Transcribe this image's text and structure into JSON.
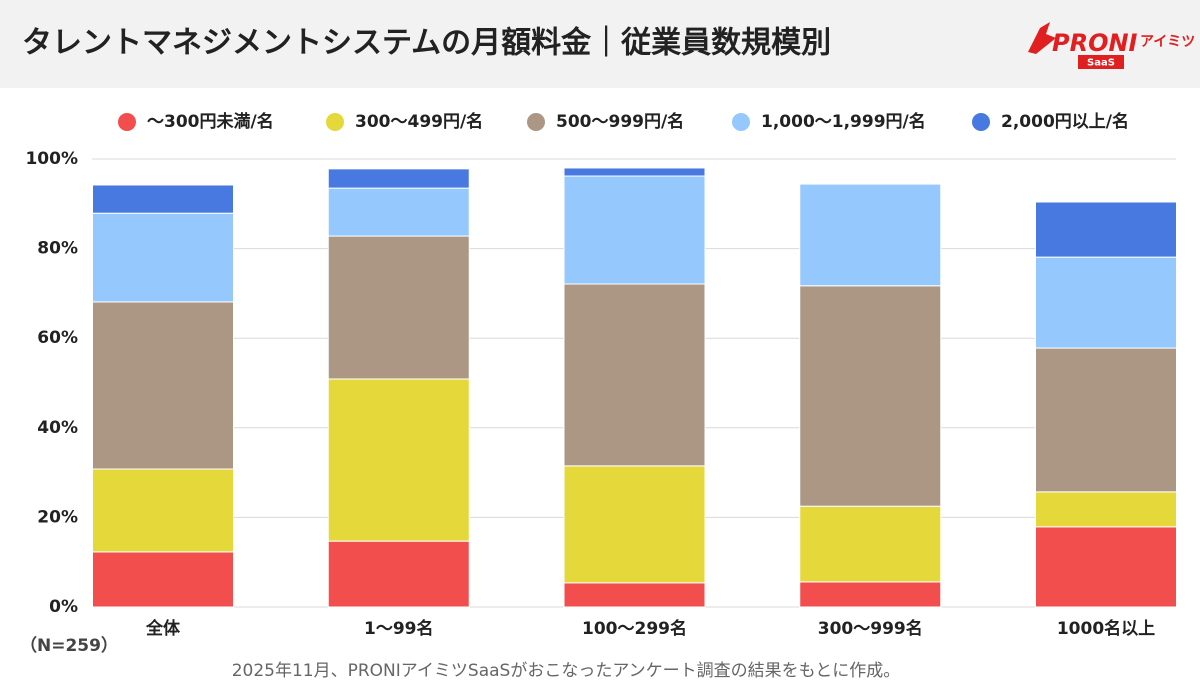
{
  "header": {
    "title": "タレントマネジメントシステムの月額料金｜従業員数規模別",
    "logo": {
      "brand": "PRONI",
      "sub": "アイミツ",
      "tag": "SaaS"
    }
  },
  "chart_data": {
    "type": "stacked_bar",
    "categories": [
      "全体",
      "1〜99名",
      "100〜299名",
      "300〜999名",
      "1000名以上"
    ],
    "series": [
      {
        "name": "〜300円未満/名",
        "color": "#f24e4e",
        "values": [
          12.3,
          14.7,
          5.4,
          5.6,
          17.9
        ]
      },
      {
        "name": "300〜499円/名",
        "color": "#e4d83b",
        "values": [
          18.5,
          36.2,
          26.1,
          16.9,
          7.8
        ]
      },
      {
        "name": "500〜999円/名",
        "color": "#ab9784",
        "values": [
          37.3,
          31.9,
          40.6,
          49.2,
          32.1
        ]
      },
      {
        "name": "1,000〜1,999円/名",
        "color": "#95c8fd",
        "values": [
          19.8,
          10.7,
          24.1,
          22.7,
          20.3
        ]
      },
      {
        "name": "2,000円以上/名",
        "color": "#4779e0",
        "values": [
          6.3,
          4.3,
          1.8,
          0,
          12.3
        ]
      }
    ],
    "ylim": [
      0,
      100
    ],
    "yticks": [
      {
        "value": 0,
        "label": "0%"
      },
      {
        "value": 20,
        "label": "20%"
      },
      {
        "value": 40,
        "label": "40%"
      },
      {
        "value": 60,
        "label": "60%"
      },
      {
        "value": 80,
        "label": "80%"
      },
      {
        "value": 100,
        "label": "100%"
      }
    ],
    "grid": true,
    "sample_note": "（N=259）",
    "footnote": "2025年11月、PRONIアイミツSaaSがおこなったアンケート調査の結果をもとに作成。"
  }
}
